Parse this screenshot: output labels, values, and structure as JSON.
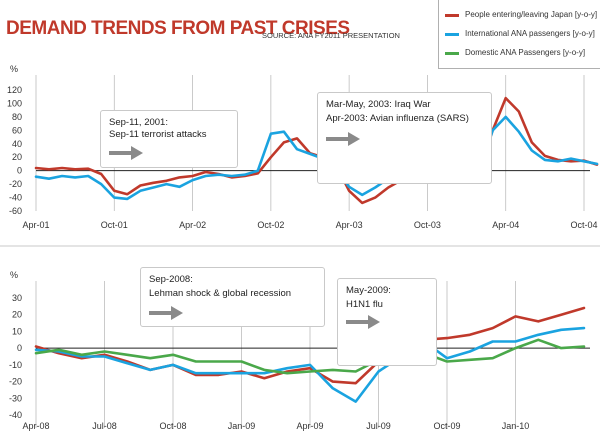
{
  "header": {
    "title": "DEMAND TRENDS FROM PAST CRISES",
    "source": "SOURCE: ANA FY2011 PRESENTATION"
  },
  "legend": {
    "items": [
      {
        "label": "People entering/leaving Japan [y-o-y]",
        "color": "#c0392b"
      },
      {
        "label": "International ANA passengers [y-o-y]",
        "color": "#1aa3e0"
      },
      {
        "label": "Domestic ANA Passengers [y-o-y]",
        "color": "#4aa84a"
      }
    ]
  },
  "colors": {
    "red": "#c0392b",
    "blue": "#1aa3e0",
    "green": "#4aa84a"
  },
  "chart_data": [
    {
      "type": "line",
      "ylabel": "%",
      "ylim": [
        -60,
        120
      ],
      "yticks": [
        -60,
        -40,
        -20,
        0,
        20,
        40,
        60,
        80,
        100,
        120
      ],
      "x_start": "Apr-01",
      "x_end": "Nov-04",
      "x_ticks": [
        "Apr-01",
        "Oct-01",
        "Apr-02",
        "Oct-02",
        "Apr-03",
        "Oct-03",
        "Apr-04",
        "Oct-04"
      ],
      "series": [
        {
          "name": "People entering/leaving Japan [y-o-y]",
          "color": "#c0392b",
          "points": [
            [
              "Apr-01",
              4
            ],
            [
              "May-01",
              2
            ],
            [
              "Jun-01",
              4
            ],
            [
              "Jul-01",
              2
            ],
            [
              "Aug-01",
              3
            ],
            [
              "Sep-01",
              -5
            ],
            [
              "Oct-01",
              -30
            ],
            [
              "Nov-01",
              -35
            ],
            [
              "Dec-01",
              -22
            ],
            [
              "Jan-02",
              -18
            ],
            [
              "Feb-02",
              -15
            ],
            [
              "Mar-02",
              -10
            ],
            [
              "Apr-02",
              -8
            ],
            [
              "May-02",
              -2
            ],
            [
              "Jun-02",
              -5
            ],
            [
              "Jul-02",
              -10
            ],
            [
              "Aug-02",
              -8
            ],
            [
              "Sep-02",
              -4
            ],
            [
              "Oct-02",
              20
            ],
            [
              "Nov-02",
              42
            ],
            [
              "Dec-02",
              48
            ],
            [
              "Jan-03",
              26
            ],
            [
              "Feb-03",
              20
            ],
            [
              "Mar-03",
              8
            ],
            [
              "Apr-03",
              -30
            ],
            [
              "May-03",
              -48
            ],
            [
              "Jun-03",
              -40
            ],
            [
              "Jul-03",
              -25
            ],
            [
              "Aug-03",
              -14
            ],
            [
              "Sep-03",
              -8
            ],
            [
              "Oct-03",
              -5
            ],
            [
              "Nov-03",
              0
            ],
            [
              "Dec-03",
              1
            ],
            [
              "Jan-04",
              -3
            ],
            [
              "Feb-04",
              2
            ],
            [
              "Mar-04",
              60
            ],
            [
              "Apr-04",
              108
            ],
            [
              "May-04",
              88
            ],
            [
              "Jun-04",
              42
            ],
            [
              "Jul-04",
              22
            ],
            [
              "Aug-04",
              16
            ],
            [
              "Sep-04",
              14
            ],
            [
              "Oct-04",
              15
            ],
            [
              "Nov-04",
              9
            ]
          ]
        },
        {
          "name": "International ANA passengers [y-o-y]",
          "color": "#1aa3e0",
          "points": [
            [
              "Apr-01",
              -9
            ],
            [
              "May-01",
              -12
            ],
            [
              "Jun-01",
              -8
            ],
            [
              "Jul-01",
              -10
            ],
            [
              "Aug-01",
              -8
            ],
            [
              "Sep-01",
              -20
            ],
            [
              "Oct-01",
              -40
            ],
            [
              "Nov-01",
              -42
            ],
            [
              "Dec-01",
              -30
            ],
            [
              "Jan-02",
              -25
            ],
            [
              "Feb-02",
              -20
            ],
            [
              "Mar-02",
              -24
            ],
            [
              "Apr-02",
              -14
            ],
            [
              "May-02",
              -8
            ],
            [
              "Jun-02",
              -6
            ],
            [
              "Jul-02",
              -8
            ],
            [
              "Aug-02",
              -6
            ],
            [
              "Sep-02",
              0
            ],
            [
              "Oct-02",
              55
            ],
            [
              "Nov-02",
              58
            ],
            [
              "Dec-02",
              32
            ],
            [
              "Jan-03",
              25
            ],
            [
              "Feb-03",
              18
            ],
            [
              "Mar-03",
              2
            ],
            [
              "Apr-03",
              -24
            ],
            [
              "May-03",
              -36
            ],
            [
              "Jun-03",
              -25
            ],
            [
              "Jul-03",
              -12
            ],
            [
              "Aug-03",
              -5
            ],
            [
              "Sep-03",
              -4
            ],
            [
              "Oct-03",
              -8
            ],
            [
              "Nov-03",
              -4
            ],
            [
              "Dec-03",
              -2
            ],
            [
              "Jan-04",
              -6
            ],
            [
              "Feb-04",
              0
            ],
            [
              "Mar-04",
              60
            ],
            [
              "Apr-04",
              80
            ],
            [
              "May-04",
              58
            ],
            [
              "Jun-04",
              30
            ],
            [
              "Jul-04",
              16
            ],
            [
              "Aug-04",
              14
            ],
            [
              "Sep-04",
              18
            ],
            [
              "Oct-04",
              14
            ],
            [
              "Nov-04",
              10
            ]
          ]
        }
      ]
    },
    {
      "type": "line",
      "ylabel": "%",
      "ylim": [
        -40,
        30
      ],
      "yticks": [
        -40,
        -30,
        -20,
        -10,
        0,
        10,
        20,
        30
      ],
      "x_start": "Apr-08",
      "x_end": "Mar-10",
      "x_ticks": [
        "Apr-08",
        "Jul-08",
        "Oct-08",
        "Jan-09",
        "Apr-09",
        "Jul-09",
        "Oct-09",
        "Jan-10"
      ],
      "series": [
        {
          "name": "People entering/leaving Japan [y-o-y]",
          "color": "#c0392b",
          "points": [
            [
              "Apr-08",
              1
            ],
            [
              "May-08",
              -3
            ],
            [
              "Jun-08",
              -6
            ],
            [
              "Jul-08",
              -4
            ],
            [
              "Aug-08",
              -8
            ],
            [
              "Sep-08",
              -13
            ],
            [
              "Oct-08",
              -10
            ],
            [
              "Nov-08",
              -16
            ],
            [
              "Dec-08",
              -16
            ],
            [
              "Jan-09",
              -14
            ],
            [
              "Feb-09",
              -18
            ],
            [
              "Mar-09",
              -14
            ],
            [
              "Apr-09",
              -12
            ],
            [
              "May-09",
              -20
            ],
            [
              "Jun-09",
              -21
            ],
            [
              "Jul-09",
              -8
            ],
            [
              "Aug-09",
              2
            ],
            [
              "Sep-09",
              5
            ],
            [
              "Oct-09",
              6
            ],
            [
              "Nov-09",
              8
            ],
            [
              "Dec-09",
              12
            ],
            [
              "Jan-10",
              19
            ],
            [
              "Feb-10",
              16
            ],
            [
              "Mar-10",
              20
            ],
            [
              "Apr-10",
              24
            ]
          ]
        },
        {
          "name": "International ANA passengers [y-o-y]",
          "color": "#1aa3e0",
          "points": [
            [
              "Apr-08",
              -1
            ],
            [
              "May-08",
              -2
            ],
            [
              "Jun-08",
              -5
            ],
            [
              "Jul-08",
              -5
            ],
            [
              "Aug-08",
              -9
            ],
            [
              "Sep-08",
              -13
            ],
            [
              "Oct-08",
              -10
            ],
            [
              "Nov-08",
              -15
            ],
            [
              "Dec-08",
              -15
            ],
            [
              "Jan-09",
              -15
            ],
            [
              "Feb-09",
              -15
            ],
            [
              "Mar-09",
              -12
            ],
            [
              "Apr-09",
              -10
            ],
            [
              "May-09",
              -24
            ],
            [
              "Jun-09",
              -32
            ],
            [
              "Jul-09",
              -14
            ],
            [
              "Aug-09",
              -5
            ],
            [
              "Sep-09",
              4
            ],
            [
              "Oct-09",
              -6
            ],
            [
              "Nov-09",
              -2
            ],
            [
              "Dec-09",
              4
            ],
            [
              "Jan-10",
              4
            ],
            [
              "Feb-10",
              8
            ],
            [
              "Mar-10",
              11
            ],
            [
              "Apr-10",
              12
            ]
          ]
        },
        {
          "name": "Domestic ANA Passengers [y-o-y]",
          "color": "#4aa84a",
          "points": [
            [
              "Apr-08",
              -3
            ],
            [
              "May-08",
              -1
            ],
            [
              "Jun-08",
              -4
            ],
            [
              "Jul-08",
              -2
            ],
            [
              "Aug-08",
              -4
            ],
            [
              "Sep-08",
              -6
            ],
            [
              "Oct-08",
              -4
            ],
            [
              "Nov-08",
              -8
            ],
            [
              "Dec-08",
              -8
            ],
            [
              "Jan-09",
              -8
            ],
            [
              "Feb-09",
              -13
            ],
            [
              "Mar-09",
              -15
            ],
            [
              "Apr-09",
              -14
            ],
            [
              "May-09",
              -13
            ],
            [
              "Jun-09",
              -14
            ],
            [
              "Jul-09",
              -7
            ],
            [
              "Aug-09",
              -8
            ],
            [
              "Sep-09",
              -3
            ],
            [
              "Oct-09",
              -8
            ],
            [
              "Nov-09",
              -7
            ],
            [
              "Dec-09",
              -6
            ],
            [
              "Jan-10",
              0
            ],
            [
              "Feb-10",
              5
            ],
            [
              "Mar-10",
              0
            ],
            [
              "Apr-10",
              1
            ]
          ]
        }
      ]
    }
  ],
  "annotations": [
    {
      "lines": [
        "Sep-11, 2001:",
        "Sep-11 terrorist attacks"
      ]
    },
    {
      "lines": [
        "Mar-May, 2003: Iraq War",
        "Apr-2003: Avian influenza (SARS)"
      ]
    },
    {
      "lines": [
        "Sep-2008:",
        "Lehman shock & global recession"
      ]
    },
    {
      "lines": [
        "May-2009:",
        "H1N1 flu"
      ]
    }
  ]
}
